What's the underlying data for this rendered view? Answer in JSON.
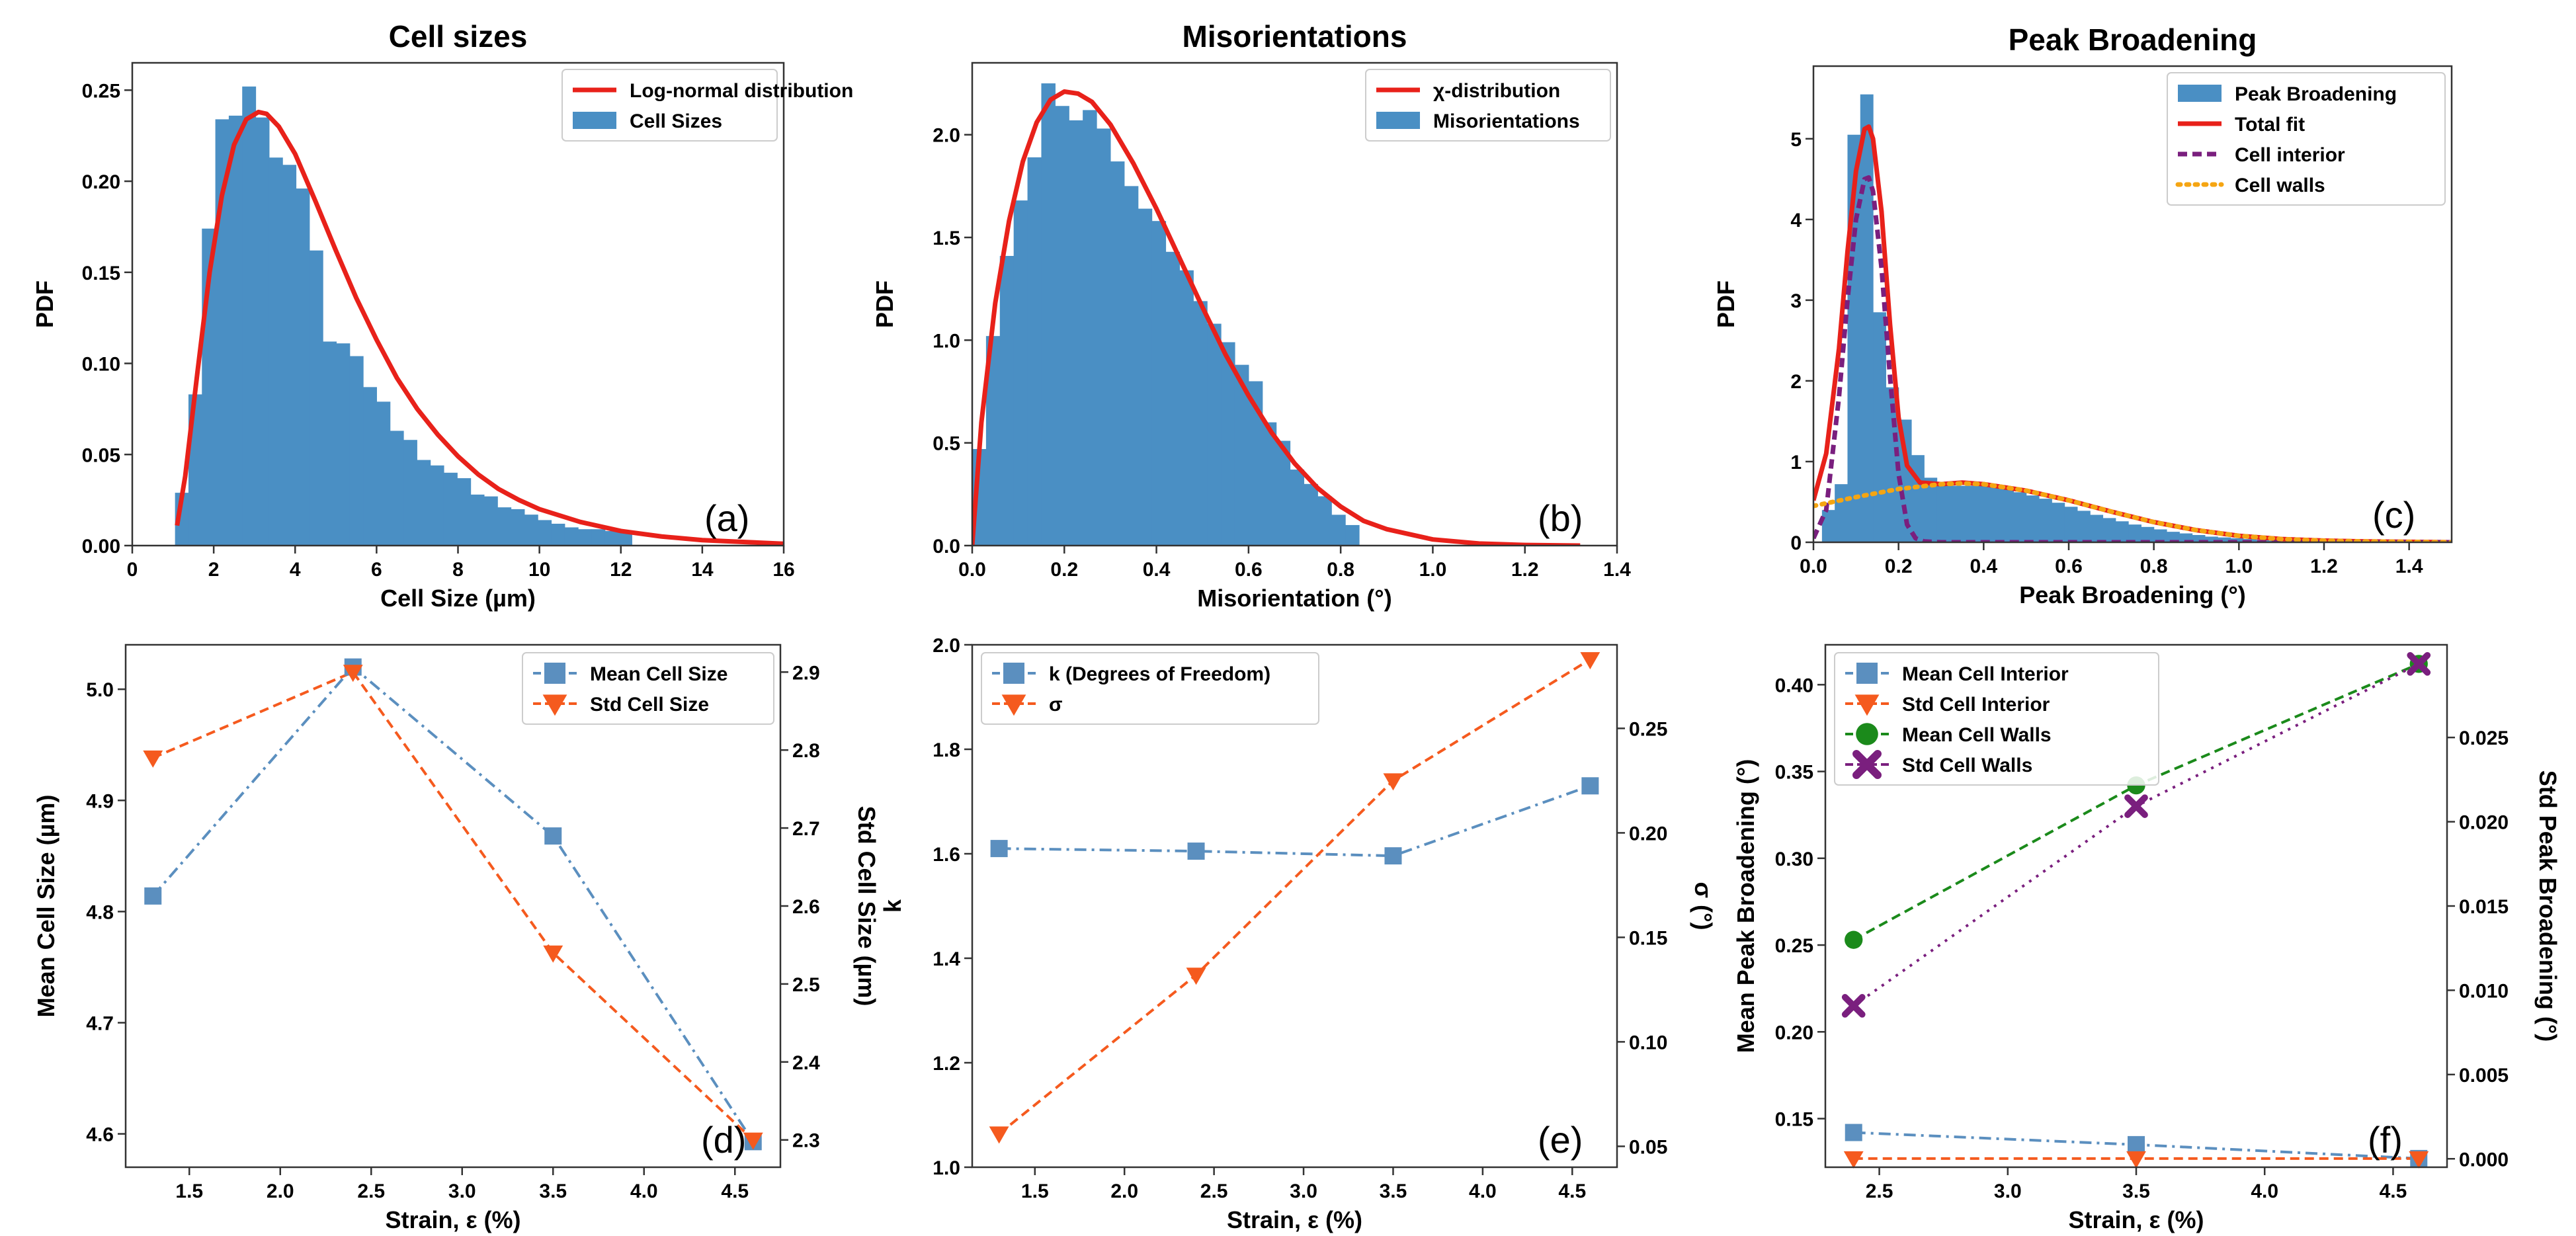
{
  "figure": {
    "description_panels": [
      "a",
      "b",
      "c",
      "d",
      "e",
      "f"
    ]
  },
  "colors": {
    "blue": "#4a8fc4",
    "blue_line": "#5b8fbf",
    "red": "#e8211a",
    "orange": "#f55a1e",
    "purple": "#7a1f7e",
    "gold": "#f5a512",
    "green": "#1b8a1b"
  },
  "chart_data": [
    {
      "id": "a",
      "type": "bar",
      "title": "Cell sizes",
      "xlabel": "Cell Size (µm)",
      "ylabel": "PDF",
      "panel_label": "(a)",
      "xlim": [
        0,
        16
      ],
      "ylim": [
        0,
        0.265
      ],
      "xticks": [
        0,
        2,
        4,
        6,
        8,
        10,
        12,
        14,
        16
      ],
      "xtick_labels": [
        "0",
        "2",
        "4",
        "6",
        "8",
        "10",
        "12",
        "14",
        "16"
      ],
      "yticks": [
        0.0,
        0.05,
        0.1,
        0.15,
        0.2,
        0.25
      ],
      "ytick_labels": [
        "0.00",
        "0.05",
        "0.10",
        "0.15",
        "0.20",
        "0.25"
      ],
      "histogram": {
        "name": "Cell Sizes",
        "edges": [
          1.05,
          1.38,
          1.71,
          2.04,
          2.37,
          2.7,
          3.03,
          3.36,
          3.69,
          4.02,
          4.35,
          4.68,
          5.01,
          5.34,
          5.67,
          6.0,
          6.33,
          6.66,
          6.99,
          7.32,
          7.65,
          7.98,
          8.31,
          8.64,
          8.97,
          9.3,
          9.63,
          9.96,
          10.29,
          10.62,
          10.95,
          11.28,
          11.61,
          11.94,
          12.27
        ],
        "heights": [
          0.029,
          0.083,
          0.174,
          0.234,
          0.236,
          0.252,
          0.235,
          0.213,
          0.209,
          0.196,
          0.162,
          0.112,
          0.111,
          0.104,
          0.087,
          0.079,
          0.063,
          0.058,
          0.047,
          0.044,
          0.04,
          0.037,
          0.028,
          0.027,
          0.021,
          0.02,
          0.017,
          0.014,
          0.012,
          0.01,
          0.009,
          0.009,
          0.008,
          0.008
        ]
      },
      "curves": [
        {
          "name": "Log-normal distribution",
          "style": "solid",
          "color_key": "red",
          "x": [
            1.1,
            1.3,
            1.6,
            1.9,
            2.2,
            2.5,
            2.8,
            3.1,
            3.3,
            3.6,
            4.0,
            4.5,
            5.0,
            5.5,
            6.0,
            6.5,
            7.0,
            7.5,
            8.0,
            8.5,
            9.0,
            9.5,
            10.0,
            11.0,
            12.0,
            13.0,
            14.0,
            15.0,
            16.0
          ],
          "y": [
            0.011,
            0.038,
            0.095,
            0.15,
            0.192,
            0.22,
            0.234,
            0.238,
            0.237,
            0.23,
            0.215,
            0.189,
            0.162,
            0.136,
            0.113,
            0.092,
            0.075,
            0.061,
            0.049,
            0.039,
            0.031,
            0.025,
            0.02,
            0.013,
            0.008,
            0.005,
            0.003,
            0.002,
            0.001
          ]
        }
      ],
      "legend": [
        {
          "label": "Log-normal distribution",
          "kind": "line",
          "color_key": "red"
        },
        {
          "label": "Cell Sizes",
          "kind": "patch",
          "color_key": "blue"
        }
      ]
    },
    {
      "id": "b",
      "type": "bar",
      "title": "Misorientations",
      "xlabel": "Misorientation (°)",
      "ylabel": "PDF",
      "panel_label": "(b)",
      "xlim": [
        0,
        1.4
      ],
      "ylim": [
        0,
        2.35
      ],
      "xticks": [
        0.0,
        0.2,
        0.4,
        0.6,
        0.8,
        1.0,
        1.2,
        1.4
      ],
      "xtick_labels": [
        "0.0",
        "0.2",
        "0.4",
        "0.6",
        "0.8",
        "1.0",
        "1.2",
        "1.4"
      ],
      "yticks": [
        0.0,
        0.5,
        1.0,
        1.5,
        2.0
      ],
      "ytick_labels": [
        "0.0",
        "0.5",
        "1.0",
        "1.5",
        "2.0"
      ],
      "histogram": {
        "name": "Misorientations",
        "edges": [
          0.0,
          0.03,
          0.06,
          0.09,
          0.12,
          0.15,
          0.18,
          0.21,
          0.24,
          0.27,
          0.3,
          0.33,
          0.36,
          0.39,
          0.42,
          0.45,
          0.48,
          0.51,
          0.54,
          0.57,
          0.6,
          0.63,
          0.66,
          0.69,
          0.72,
          0.75,
          0.78,
          0.81,
          0.84
        ],
        "heights": [
          0.47,
          1.02,
          1.41,
          1.68,
          1.89,
          2.25,
          2.14,
          2.07,
          2.12,
          2.03,
          1.87,
          1.75,
          1.64,
          1.58,
          1.43,
          1.34,
          1.19,
          1.08,
          0.99,
          0.88,
          0.8,
          0.6,
          0.51,
          0.37,
          0.3,
          0.24,
          0.15,
          0.1
        ]
      },
      "curves": [
        {
          "name": "χ-distribution",
          "style": "solid",
          "color_key": "red",
          "x": [
            0.0,
            0.02,
            0.05,
            0.08,
            0.11,
            0.14,
            0.17,
            0.2,
            0.23,
            0.26,
            0.3,
            0.35,
            0.4,
            0.45,
            0.5,
            0.55,
            0.6,
            0.65,
            0.7,
            0.75,
            0.8,
            0.85,
            0.9,
            1.0,
            1.1,
            1.2,
            1.32
          ],
          "y": [
            0.0,
            0.6,
            1.18,
            1.58,
            1.87,
            2.06,
            2.17,
            2.21,
            2.2,
            2.16,
            2.05,
            1.86,
            1.64,
            1.4,
            1.16,
            0.93,
            0.73,
            0.55,
            0.4,
            0.28,
            0.19,
            0.12,
            0.08,
            0.03,
            0.01,
            0.003,
            0.0
          ]
        }
      ],
      "legend": [
        {
          "label": "χ-distribution",
          "kind": "line",
          "color_key": "red"
        },
        {
          "label": "Misorientations",
          "kind": "patch",
          "color_key": "blue"
        }
      ]
    },
    {
      "id": "c",
      "type": "bar",
      "title": "Peak Broadening",
      "xlabel": "Peak Broadening (°)",
      "ylabel": "PDF",
      "panel_label": "(c)",
      "xlim": [
        0,
        1.5
      ],
      "ylim": [
        0,
        5.9
      ],
      "xticks": [
        0.0,
        0.2,
        0.4,
        0.6,
        0.8,
        1.0,
        1.2,
        1.4
      ],
      "xtick_labels": [
        "0.0",
        "0.2",
        "0.4",
        "0.6",
        "0.8",
        "1.0",
        "1.2",
        "1.4"
      ],
      "yticks": [
        0,
        1,
        2,
        3,
        4,
        5
      ],
      "ytick_labels": [
        "0",
        "1",
        "2",
        "3",
        "4",
        "5"
      ],
      "histogram": {
        "name": "Peak Broadening",
        "edges": [
          0.02,
          0.05,
          0.08,
          0.11,
          0.14,
          0.17,
          0.2,
          0.23,
          0.26,
          0.29,
          0.32,
          0.35,
          0.38,
          0.41,
          0.44,
          0.47,
          0.5,
          0.53,
          0.56,
          0.59,
          0.62,
          0.65,
          0.68,
          0.71,
          0.74,
          0.77,
          0.8,
          0.83,
          0.86,
          0.89,
          0.92,
          0.95,
          0.98,
          1.01,
          1.04,
          1.07,
          1.1
        ],
        "heights": [
          0.4,
          0.72,
          5.05,
          5.55,
          2.85,
          1.92,
          1.52,
          1.08,
          0.8,
          0.72,
          0.7,
          0.7,
          0.7,
          0.68,
          0.66,
          0.62,
          0.58,
          0.54,
          0.49,
          0.44,
          0.39,
          0.34,
          0.3,
          0.26,
          0.22,
          0.19,
          0.16,
          0.13,
          0.11,
          0.09,
          0.07,
          0.06,
          0.05,
          0.04,
          0.03,
          0.02
        ]
      },
      "curves": [
        {
          "name": "Total fit",
          "style": "solid",
          "color_key": "red",
          "x": [
            0.0,
            0.03,
            0.06,
            0.08,
            0.1,
            0.12,
            0.13,
            0.14,
            0.16,
            0.18,
            0.2,
            0.22,
            0.25,
            0.3,
            0.35,
            0.4,
            0.5,
            0.6,
            0.7,
            0.8,
            0.9,
            1.0,
            1.1,
            1.2,
            1.3,
            1.4,
            1.5
          ],
          "y": [
            0.52,
            1.1,
            2.4,
            3.6,
            4.6,
            5.12,
            5.15,
            5.0,
            4.1,
            2.7,
            1.55,
            0.95,
            0.74,
            0.72,
            0.74,
            0.72,
            0.64,
            0.52,
            0.38,
            0.25,
            0.15,
            0.08,
            0.04,
            0.02,
            0.01,
            0.005,
            0.0
          ]
        },
        {
          "name": "Cell interior",
          "style": "dashed",
          "color_key": "purple",
          "x": [
            0.0,
            0.03,
            0.06,
            0.08,
            0.1,
            0.12,
            0.13,
            0.14,
            0.16,
            0.18,
            0.2,
            0.22,
            0.24,
            0.26,
            0.3,
            0.4,
            0.6,
            1.0,
            1.5
          ],
          "y": [
            0.05,
            0.4,
            1.8,
            3.0,
            4.0,
            4.5,
            4.52,
            4.35,
            3.4,
            2.05,
            0.85,
            0.22,
            0.05,
            0.01,
            0.0,
            0.0,
            0.0,
            0.0,
            0.0
          ]
        },
        {
          "name": "Cell walls",
          "style": "dotted",
          "color_key": "gold",
          "x": [
            0.0,
            0.1,
            0.2,
            0.3,
            0.35,
            0.4,
            0.5,
            0.6,
            0.7,
            0.8,
            0.9,
            1.0,
            1.1,
            1.2,
            1.3,
            1.4,
            1.5
          ],
          "y": [
            0.45,
            0.56,
            0.66,
            0.72,
            0.73,
            0.72,
            0.64,
            0.52,
            0.38,
            0.25,
            0.15,
            0.08,
            0.04,
            0.02,
            0.01,
            0.005,
            0.0
          ]
        }
      ],
      "legend": [
        {
          "label": "Peak Broadening",
          "kind": "patch",
          "color_key": "blue"
        },
        {
          "label": "Total fit",
          "kind": "line",
          "color_key": "red"
        },
        {
          "label": "Cell interior",
          "kind": "dashed",
          "color_key": "purple"
        },
        {
          "label": "Cell walls",
          "kind": "dotted",
          "color_key": "gold"
        }
      ]
    },
    {
      "id": "d",
      "type": "line",
      "xlabel": "Strain, ε (%)",
      "ylabel": "Mean Cell Size (µm)",
      "ylabel_right": "Std Cell Size (µm)",
      "panel_label": "(d)",
      "xlim": [
        1.15,
        4.75
      ],
      "ylim": [
        4.57,
        5.04
      ],
      "ylim_right": [
        2.265,
        2.935
      ],
      "xticks": [
        1.5,
        2.0,
        2.5,
        3.0,
        3.5,
        4.0,
        4.5
      ],
      "xtick_labels": [
        "1.5",
        "2.0",
        "2.5",
        "3.0",
        "3.5",
        "4.0",
        "4.5"
      ],
      "yticks": [
        4.6,
        4.7,
        4.8,
        4.9,
        5.0
      ],
      "ytick_labels": [
        "4.6",
        "4.7",
        "4.8",
        "4.9",
        "5.0"
      ],
      "yticks_right": [
        2.3,
        2.4,
        2.5,
        2.6,
        2.7,
        2.8,
        2.9
      ],
      "ytick_labels_right": [
        "2.3",
        "2.4",
        "2.5",
        "2.6",
        "2.7",
        "2.8",
        "2.9"
      ],
      "series": [
        {
          "name": "Mean Cell Size",
          "axis": "left",
          "x": [
            1.3,
            2.4,
            3.5,
            4.6
          ],
          "y": [
            4.814,
            5.02,
            4.868,
            4.593
          ],
          "marker": "square",
          "style": "dashdot",
          "color_key": "blue_line"
        },
        {
          "name": "Std Cell Size",
          "axis": "right",
          "x": [
            1.3,
            2.4,
            3.5,
            4.6
          ],
          "y": [
            2.79,
            2.9,
            2.54,
            2.3
          ],
          "marker": "triangle-down",
          "style": "dashed",
          "color_key": "orange"
        }
      ],
      "legend": [
        {
          "label": "Mean Cell Size",
          "marker": "square",
          "color_key": "blue_line"
        },
        {
          "label": "Std Cell Size",
          "marker": "triangle-down",
          "color_key": "orange"
        }
      ]
    },
    {
      "id": "e",
      "type": "line",
      "xlabel": "Strain, ε (%)",
      "ylabel": "k",
      "ylabel_right": "σ (°)",
      "panel_label": "(e)",
      "xlim": [
        1.15,
        4.75
      ],
      "ylim": [
        1.0,
        2.0
      ],
      "ylim_right": [
        0.04,
        0.29
      ],
      "xticks": [
        1.5,
        2.0,
        2.5,
        3.0,
        3.5,
        4.0,
        4.5
      ],
      "xtick_labels": [
        "1.5",
        "2.0",
        "2.5",
        "3.0",
        "3.5",
        "4.0",
        "4.5"
      ],
      "yticks": [
        1.0,
        1.2,
        1.4,
        1.6,
        1.8,
        2.0
      ],
      "ytick_labels": [
        "1.0",
        "1.2",
        "1.4",
        "1.6",
        "1.8",
        "2.0"
      ],
      "yticks_right": [
        0.05,
        0.1,
        0.15,
        0.2,
        0.25
      ],
      "ytick_labels_right": [
        "0.05",
        "0.10",
        "0.15",
        "0.20",
        "0.25"
      ],
      "series": [
        {
          "name": "k (Degrees of Freedom)",
          "axis": "left",
          "x": [
            1.3,
            2.4,
            3.5,
            4.6
          ],
          "y": [
            1.61,
            1.605,
            1.596,
            1.73
          ],
          "marker": "square",
          "style": "dashdot",
          "color_key": "blue_line"
        },
        {
          "name": "σ",
          "axis": "right",
          "x": [
            1.3,
            2.4,
            3.5,
            4.6
          ],
          "y": [
            0.056,
            0.132,
            0.225,
            0.283
          ],
          "marker": "triangle-down",
          "style": "dashed",
          "color_key": "orange"
        }
      ],
      "legend": [
        {
          "label": "k (Degrees of Freedom)",
          "marker": "square",
          "color_key": "blue_line"
        },
        {
          "label": "σ",
          "marker": "triangle-down",
          "color_key": "orange"
        }
      ]
    },
    {
      "id": "f",
      "type": "line",
      "xlabel": "Strain, ε (%)",
      "ylabel": "Mean Peak Broadening (°)",
      "ylabel_right": "Std Peak Broadening (°)",
      "panel_label": "(f)",
      "xlim": [
        2.29,
        4.71
      ],
      "ylim": [
        0.122,
        0.423
      ],
      "ylim_right": [
        -0.0005,
        0.0305
      ],
      "xticks": [
        2.5,
        3.0,
        3.5,
        4.0,
        4.5
      ],
      "xtick_labels": [
        "2.5",
        "3.0",
        "3.5",
        "4.0",
        "4.5"
      ],
      "yticks": [
        0.15,
        0.2,
        0.25,
        0.3,
        0.35,
        0.4
      ],
      "ytick_labels": [
        "0.15",
        "0.20",
        "0.25",
        "0.30",
        "0.35",
        "0.40"
      ],
      "yticks_right": [
        0.0,
        0.005,
        0.01,
        0.015,
        0.02,
        0.025
      ],
      "ytick_labels_right": [
        "0.000",
        "0.005",
        "0.010",
        "0.015",
        "0.020",
        "0.025"
      ],
      "series": [
        {
          "name": "Mean Cell Interior",
          "axis": "left",
          "x": [
            2.4,
            3.5,
            4.6
          ],
          "y": [
            0.142,
            0.135,
            0.127
          ],
          "marker": "square",
          "style": "dashdot",
          "color_key": "blue_line"
        },
        {
          "name": "Std Cell Interior",
          "axis": "left",
          "x": [
            2.4,
            3.5,
            4.6
          ],
          "y": [
            0.127,
            0.127,
            0.127
          ],
          "marker": "triangle-down",
          "style": "dashed",
          "color_key": "orange"
        },
        {
          "name": "Mean Cell Walls",
          "axis": "left",
          "x": [
            2.4,
            3.5,
            4.6
          ],
          "y": [
            0.253,
            0.342,
            0.412
          ],
          "marker": "circle",
          "style": "dashed",
          "color_key": "green"
        },
        {
          "name": "Std Cell Walls",
          "axis": "left",
          "x": [
            2.4,
            3.5,
            4.6
          ],
          "y": [
            0.215,
            0.33,
            0.412
          ],
          "marker": "x",
          "style": "dotted",
          "color_key": "purple"
        }
      ],
      "legend": [
        {
          "label": "Mean Cell Interior",
          "marker": "square",
          "color_key": "blue_line"
        },
        {
          "label": "Std Cell Interior",
          "marker": "triangle-down",
          "color_key": "orange"
        },
        {
          "label": "Mean Cell Walls",
          "marker": "circle",
          "color_key": "green"
        },
        {
          "label": "Std Cell Walls",
          "marker": "x",
          "color_key": "purple"
        }
      ]
    }
  ]
}
